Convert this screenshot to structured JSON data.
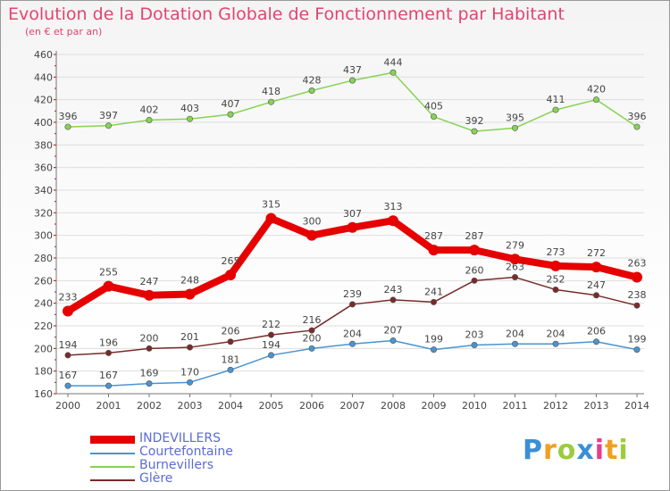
{
  "chart_data": {
    "type": "line",
    "title": "Evolution de la Dotation Globale de Fonctionnement par Habitant",
    "subtitle": "(en € et par an)",
    "x": [
      "2000",
      "2001",
      "2002",
      "2003",
      "2004",
      "2005",
      "2006",
      "2007",
      "2008",
      "2009",
      "2010",
      "2011",
      "2012",
      "2013",
      "2014"
    ],
    "ylim": [
      160,
      460
    ],
    "yticks": [
      "160",
      "180",
      "200",
      "220",
      "240",
      "260",
      "280",
      "300",
      "320",
      "340",
      "360",
      "380",
      "400",
      "420",
      "440",
      "460"
    ],
    "grid": "horizontal",
    "legend_position": "bottom-left",
    "series": [
      {
        "name": "INDEVILLERS",
        "color": "#e60000",
        "values": [
          233,
          255,
          247,
          248,
          265,
          315,
          300,
          307,
          313,
          287,
          287,
          279,
          273,
          272,
          263
        ]
      },
      {
        "name": "Courtefontaine",
        "color": "#4b94d0",
        "values": [
          167,
          167,
          169,
          170,
          181,
          194,
          200,
          204,
          207,
          199,
          203,
          204,
          204,
          206,
          199
        ]
      },
      {
        "name": "Burnevillers",
        "color": "#86d354",
        "values": [
          396,
          397,
          402,
          403,
          407,
          418,
          428,
          437,
          444,
          405,
          392,
          395,
          411,
          420,
          396
        ]
      },
      {
        "name": "Glère",
        "color": "#7a2a2a",
        "values": [
          194,
          196,
          200,
          201,
          206,
          212,
          216,
          239,
          243,
          241,
          260,
          263,
          252,
          247,
          238
        ]
      }
    ]
  },
  "brand": {
    "letters": [
      "P",
      "r",
      "o",
      "x",
      "i",
      "t",
      "i"
    ],
    "colors": [
      "#3a8fd6",
      "#f0a020",
      "#9ccc3c",
      "#3a8fd6",
      "#e83c8c",
      "#f0a020",
      "#9ccc3c"
    ]
  }
}
